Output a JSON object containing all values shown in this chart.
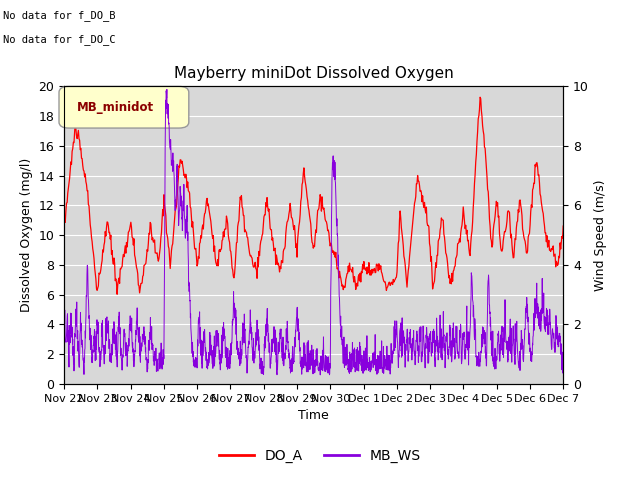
{
  "title": "Mayberry miniDot Dissolved Oxygen",
  "xlabel": "Time",
  "ylabel_left": "Dissolved Oxygen (mg/l)",
  "ylabel_right": "Wind Speed (m/s)",
  "annotations": [
    "No data for f_DO_B",
    "No data for f_DO_C"
  ],
  "legend_label_box": "MB_minidot",
  "legend_entries": [
    "DO_A",
    "MB_WS"
  ],
  "do_color": "#ff0000",
  "ws_color": "#8800dd",
  "ylim_left": [
    0,
    20
  ],
  "ylim_right": [
    0.0,
    10.0
  ],
  "yticks_left": [
    0,
    2,
    4,
    6,
    8,
    10,
    12,
    14,
    16,
    18,
    20
  ],
  "yticks_right": [
    0.0,
    2.0,
    4.0,
    6.0,
    8.0,
    10.0
  ],
  "xtick_labels": [
    "Nov 22",
    "Nov 23",
    "Nov 24",
    "Nov 25",
    "Nov 26",
    "Nov 27",
    "Nov 28",
    "Nov 29",
    "Nov 30",
    "Dec 1",
    "Dec 2",
    "Dec 3",
    "Dec 4",
    "Dec 5",
    "Dec 6",
    "Dec 7"
  ],
  "n_days": 15,
  "bg_gray": "#d8d8d8",
  "font_size": 9,
  "title_font_size": 11
}
